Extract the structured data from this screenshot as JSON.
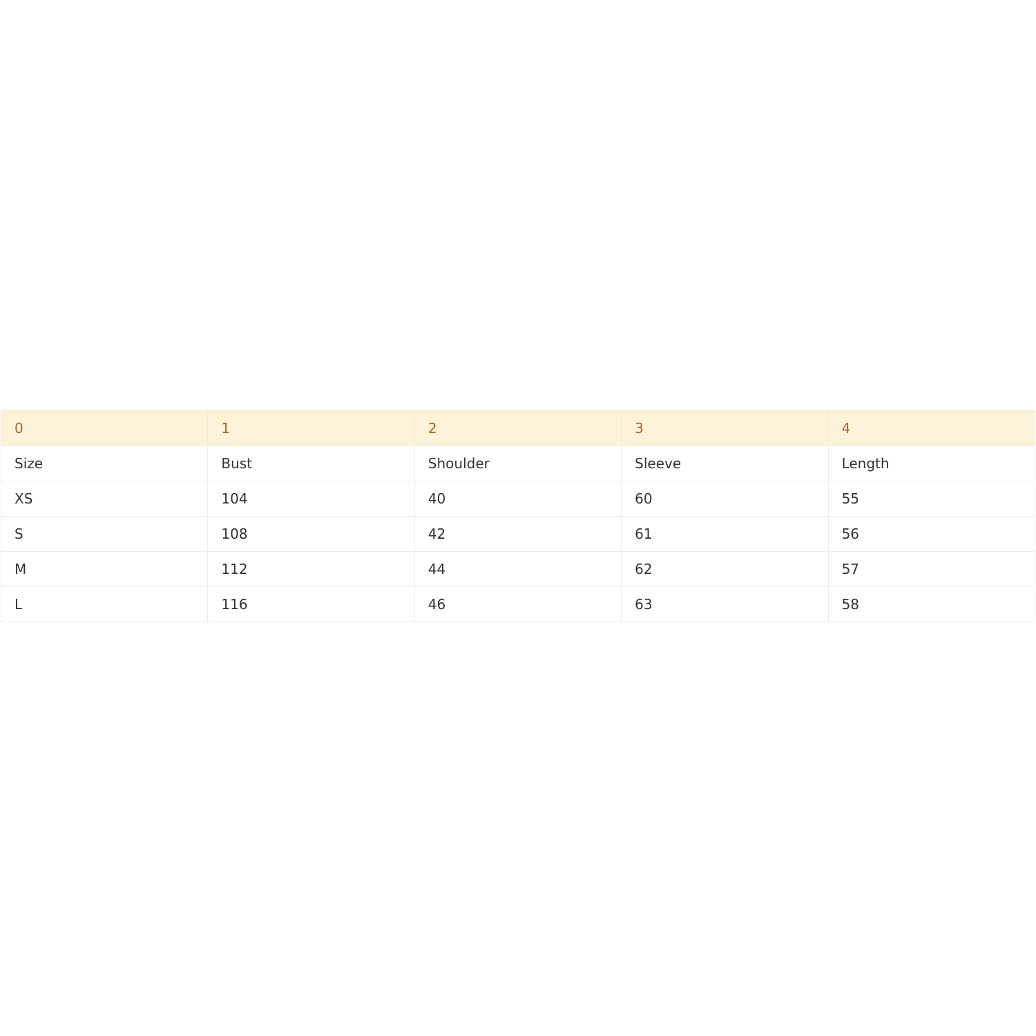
{
  "table": {
    "header": [
      "0",
      "1",
      "2",
      "3",
      "4"
    ],
    "rows": [
      [
        "Size",
        "Bust",
        "Shoulder",
        "Sleeve",
        "Length"
      ],
      [
        "XS",
        "104",
        "40",
        "60",
        "55"
      ],
      [
        "S",
        "108",
        "42",
        "61",
        "56"
      ],
      [
        "M",
        "112",
        "44",
        "62",
        "57"
      ],
      [
        "L",
        "116",
        "46",
        "63",
        "58"
      ]
    ]
  },
  "colors": {
    "header_bg": "#fcf3d9",
    "header_text": "#a5662f"
  }
}
